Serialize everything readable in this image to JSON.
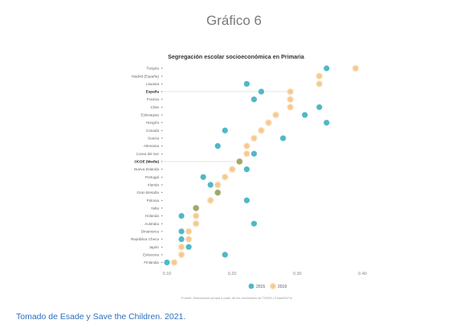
{
  "page_title": "Gráfico 6",
  "caption": "Tomado de Esade y Save the Children. 2021.",
  "chart_data": {
    "type": "scatter",
    "title": "Segregación escolar socioeconómica en Primaria",
    "source": "Fuente: Elaboración propia a partir de los microdatos de TIMSS | EsadeEcPol",
    "categories": [
      "Turquía",
      "Madrid (España)",
      "Lituania",
      "España",
      "Francia",
      "Chile",
      "Eslovaquia",
      "Hungría",
      "Canadá",
      "Suecia",
      "Alemania",
      "Corea del Sur",
      "OCDE (Media)",
      "Nueva Zelanda",
      "Portugal",
      "Irlanda",
      "Gran Bretaña",
      "Polonia",
      "Italia",
      "Holanda",
      "Australia",
      "Dinamarca",
      "República Checa",
      "Japón",
      "Eslovenia",
      "Finlandia"
    ],
    "highlighted": [
      "España",
      "OCDE (Media)"
    ],
    "series": [
      {
        "name": "2015",
        "values": [
          0.36,
          null,
          0.25,
          0.27,
          0.26,
          0.35,
          0.33,
          0.36,
          0.22,
          0.3,
          0.21,
          0.26,
          0.24,
          0.25,
          0.19,
          0.2,
          0.21,
          0.25,
          0.18,
          0.16,
          0.26,
          0.16,
          0.16,
          0.17,
          0.22,
          0.14
        ]
      },
      {
        "name": "2019",
        "values": [
          0.4,
          0.35,
          0.35,
          0.31,
          0.31,
          0.31,
          0.29,
          0.28,
          0.27,
          0.26,
          0.25,
          0.25,
          0.24,
          0.23,
          0.22,
          0.21,
          0.21,
          0.2,
          0.18,
          0.18,
          0.18,
          0.17,
          0.17,
          0.16,
          0.16,
          0.15
        ]
      }
    ],
    "x_ticks": [
      "0.10",
      "0.20",
      "0.30",
      "0.40"
    ],
    "xlim": [
      0.14,
      0.41
    ],
    "colors": {
      "2015": "#4fb8c8",
      "2019": "#f5c98f",
      "overlap": "#9aaa6a"
    },
    "legend_position": "bottom-center",
    "grid": false
  }
}
